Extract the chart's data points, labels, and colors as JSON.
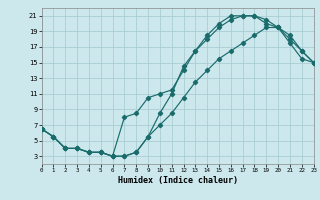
{
  "xlabel": "Humidex (Indice chaleur)",
  "bg_color": "#cce8ed",
  "grid_color": "#aacdd5",
  "line_color": "#1a6b6b",
  "line1_x": [
    0,
    1,
    2,
    3,
    4,
    5,
    6,
    7,
    8,
    9,
    10,
    11,
    12,
    13,
    14,
    15,
    16,
    17,
    18,
    19,
    20,
    21,
    22,
    23
  ],
  "line1_y": [
    6.5,
    5.5,
    4.0,
    4.0,
    3.5,
    3.5,
    3.0,
    3.0,
    3.5,
    5.5,
    8.5,
    11.0,
    14.5,
    16.5,
    18.5,
    20.0,
    21.0,
    21.0,
    21.0,
    20.0,
    19.5,
    18.0,
    16.5,
    15.0
  ],
  "line2_x": [
    0,
    1,
    2,
    3,
    4,
    5,
    6,
    7,
    8,
    9,
    10,
    11,
    12,
    13,
    14,
    15,
    16,
    17,
    18,
    19,
    20,
    21,
    22,
    23
  ],
  "line2_y": [
    6.5,
    5.5,
    4.0,
    4.0,
    3.5,
    3.5,
    3.0,
    8.0,
    8.5,
    10.5,
    11.0,
    11.5,
    14.0,
    16.5,
    18.0,
    19.5,
    20.5,
    21.0,
    21.0,
    20.5,
    19.5,
    17.5,
    15.5,
    15.0
  ],
  "line3_x": [
    0,
    1,
    2,
    3,
    4,
    5,
    6,
    7,
    8,
    9,
    10,
    11,
    12,
    13,
    14,
    15,
    16,
    17,
    18,
    19,
    20,
    21,
    22,
    23
  ],
  "line3_y": [
    6.5,
    5.5,
    4.0,
    4.0,
    3.5,
    3.5,
    3.0,
    3.0,
    3.5,
    5.5,
    7.0,
    8.5,
    10.5,
    12.5,
    14.0,
    15.5,
    16.5,
    17.5,
    18.5,
    19.5,
    19.5,
    18.5,
    16.5,
    15.0
  ],
  "xlim": [
    0,
    23
  ],
  "ylim": [
    2,
    22
  ],
  "yticks": [
    3,
    5,
    7,
    9,
    11,
    13,
    15,
    17,
    19,
    21
  ],
  "xticks": [
    0,
    1,
    2,
    3,
    4,
    5,
    6,
    7,
    8,
    9,
    10,
    11,
    12,
    13,
    14,
    15,
    16,
    17,
    18,
    19,
    20,
    21,
    22,
    23
  ]
}
